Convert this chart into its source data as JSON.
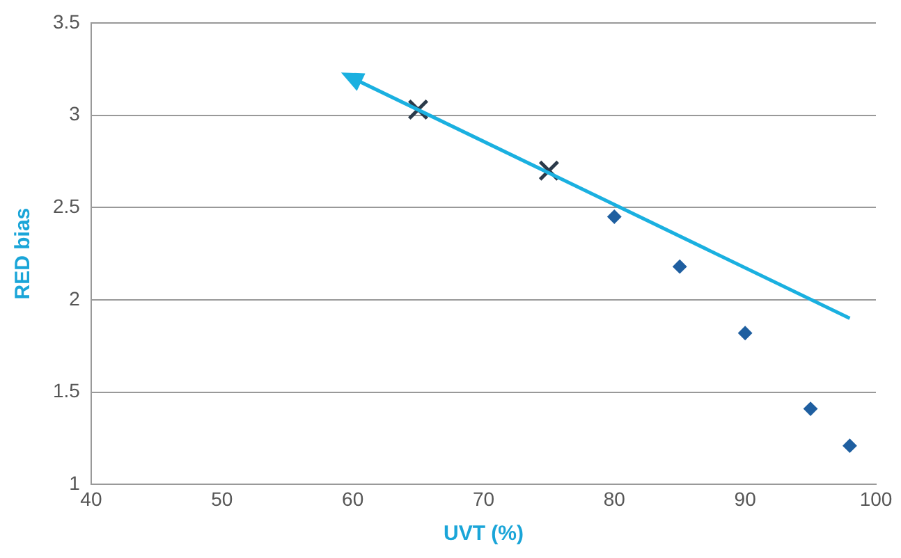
{
  "chart_data": {
    "type": "scatter",
    "xlabel": "UVT (%)",
    "ylabel": "RED bias",
    "xlim": [
      40,
      100
    ],
    "xticks": [
      40,
      50,
      60,
      70,
      80,
      90,
      100
    ],
    "ylim": [
      1,
      3.5
    ],
    "yticks": [
      1,
      1.5,
      2,
      2.5,
      3,
      3.5
    ],
    "grid": "y",
    "legend": false,
    "series": [
      {
        "type": "line",
        "color": "#1ab0e0",
        "x": [
          98,
          60
        ],
        "values": [
          1.9,
          3.2
        ]
      },
      {
        "color": "#1f5fa0",
        "marker": "diamond",
        "x": [
          80,
          85,
          90,
          95,
          98
        ],
        "values": [
          2.45,
          2.18,
          1.82,
          1.41,
          1.21
        ]
      },
      {
        "color": "#2b3a4a",
        "marker": "cross",
        "x": [
          65,
          75
        ],
        "values": [
          3.03,
          2.7
        ]
      }
    ]
  }
}
